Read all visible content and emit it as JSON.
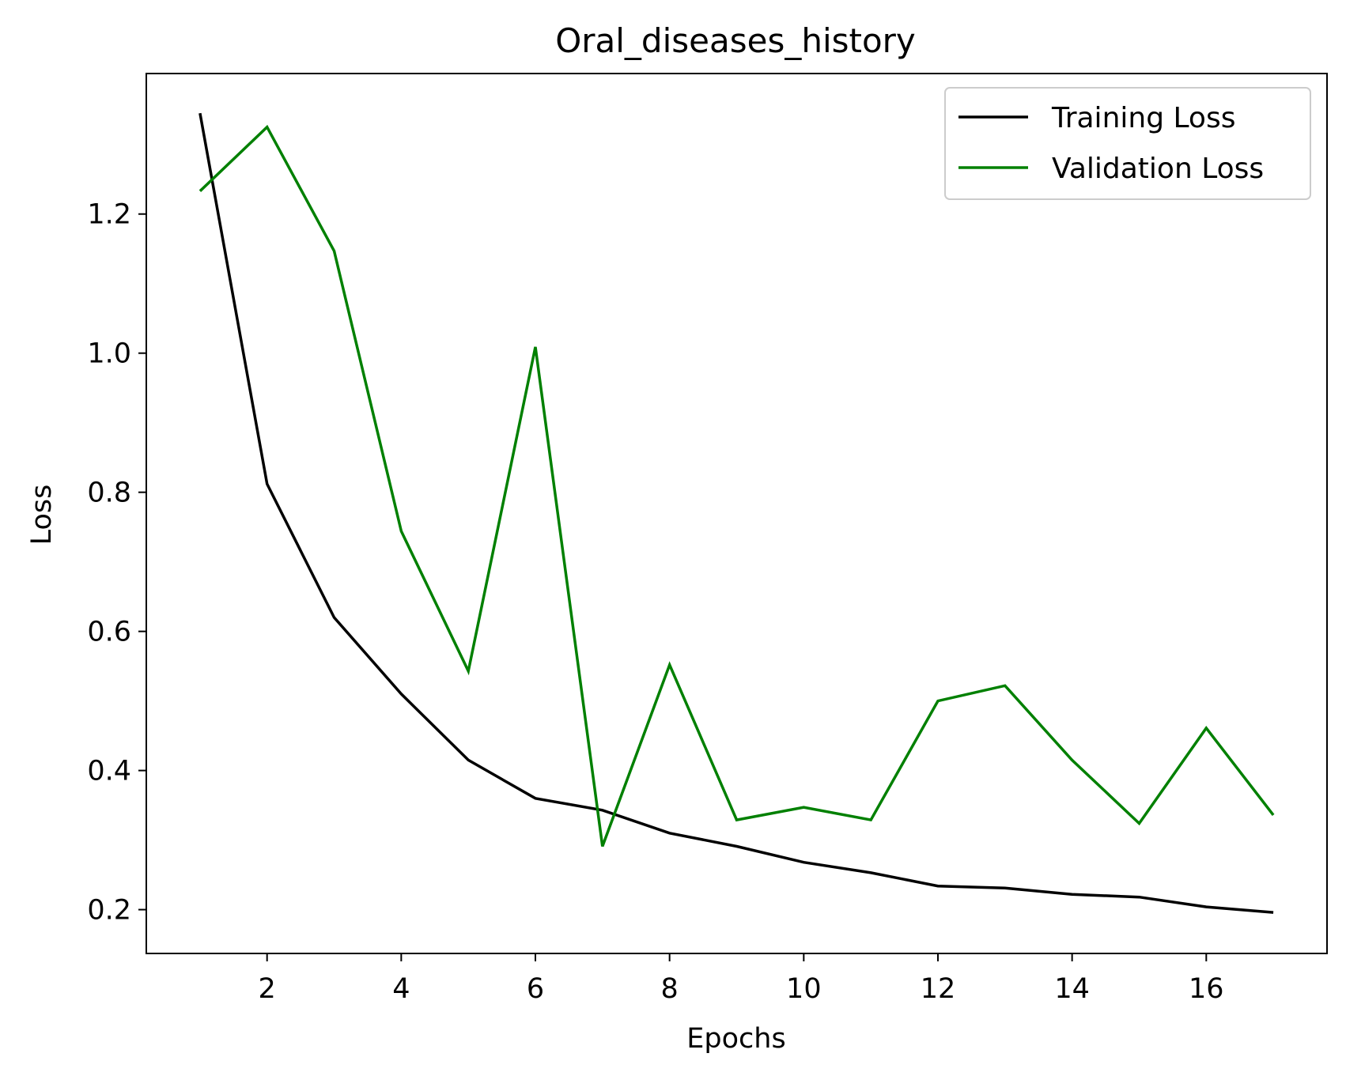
{
  "chart_data": {
    "type": "line",
    "title": "Oral_diseases_history",
    "xlabel": "Epochs",
    "ylabel": "Loss",
    "xlim": [
      0.2,
      17.8
    ],
    "ylim": [
      0.137,
      1.402
    ],
    "x": [
      1,
      2,
      3,
      4,
      5,
      6,
      7,
      8,
      9,
      10,
      11,
      12,
      13,
      14,
      15,
      16,
      17
    ],
    "xticks": [
      2,
      4,
      6,
      8,
      10,
      12,
      14,
      16
    ],
    "yticks": [
      0.2,
      0.4,
      0.6,
      0.8,
      1.0,
      1.2
    ],
    "grid": false,
    "legend_position": "top-right",
    "series": [
      {
        "name": "Training Loss",
        "color": "#000000",
        "values": [
          1.345,
          0.812,
          0.62,
          0.51,
          0.415,
          0.36,
          0.343,
          0.31,
          0.291,
          0.268,
          0.253,
          0.234,
          0.231,
          0.222,
          0.218,
          0.204,
          0.196
        ]
      },
      {
        "name": "Validation Loss",
        "color": "#008000",
        "values": [
          1.233,
          1.325,
          1.147,
          0.744,
          0.543,
          1.009,
          0.291,
          0.552,
          0.329,
          0.347,
          0.329,
          0.5,
          0.522,
          0.415,
          0.324,
          0.461,
          0.336
        ]
      }
    ]
  }
}
